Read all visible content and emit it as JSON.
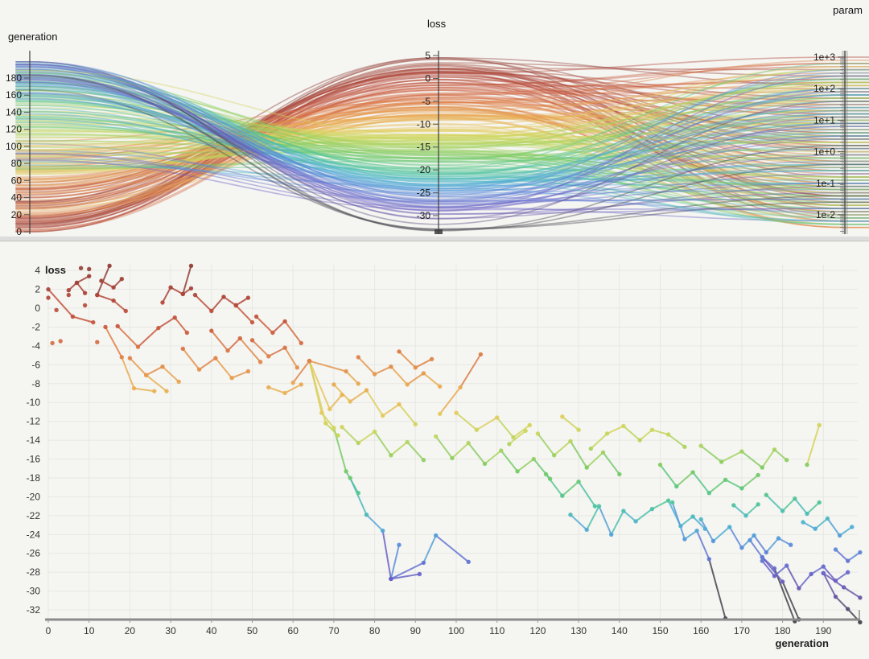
{
  "panels": {
    "parallel": {
      "axis_titles": {
        "generation": "generation",
        "loss": "loss",
        "param": "param"
      },
      "generation_ticks": [
        0,
        20,
        40,
        60,
        80,
        100,
        120,
        140,
        160,
        180
      ],
      "loss_ticks": [
        5,
        0,
        -5,
        -10,
        -15,
        -20,
        -25,
        -30
      ],
      "param_tick_labels": [
        "1e+3",
        "1e+2",
        "1e+1",
        "1e+0",
        "1e-1",
        "1e-2"
      ],
      "param_tick_exponents": [
        3,
        2,
        1,
        0,
        -1,
        -2
      ]
    },
    "scatter": {
      "x_label": "generation",
      "y_label": "loss",
      "x_ticks": [
        0,
        10,
        20,
        30,
        40,
        50,
        60,
        70,
        80,
        90,
        100,
        110,
        120,
        130,
        140,
        150,
        160,
        170,
        180,
        190
      ],
      "y_ticks": [
        4,
        2,
        0,
        -2,
        -4,
        -6,
        -8,
        -10,
        -12,
        -14,
        -16,
        -18,
        -20,
        -22,
        -24,
        -26,
        -28,
        -30,
        -32
      ]
    }
  },
  "colors": {
    "background": "#f5f5f2",
    "grid": "#e7e7e3",
    "axis_line": "#3c3c3c",
    "baseline": "#8b8b8b",
    "tick_text": "#1b1b1b",
    "brush_overlay": "rgba(120,120,120,0.28)",
    "colormap_stops": [
      [
        5,
        "#8d3e35"
      ],
      [
        1,
        "#b2473a"
      ],
      [
        -2,
        "#c95a3f"
      ],
      [
        -5,
        "#de7e48"
      ],
      [
        -8,
        "#e9a850"
      ],
      [
        -11,
        "#e6c95d"
      ],
      [
        -13,
        "#cdd75c"
      ],
      [
        -15,
        "#a6d360"
      ],
      [
        -17,
        "#7ecb63"
      ],
      [
        -19,
        "#5dc87f"
      ],
      [
        -21,
        "#4ec3a4"
      ],
      [
        -23,
        "#4fb2d3"
      ],
      [
        -25,
        "#5a92dc"
      ],
      [
        -27,
        "#6573d1"
      ],
      [
        -29,
        "#6c5ec3"
      ],
      [
        -31,
        "#6a579f"
      ],
      [
        -33,
        "#46464e"
      ],
      [
        -34,
        "#3a3a40"
      ]
    ]
  },
  "chart_data": {
    "type": "scatter",
    "linked_views": [
      "parallel-coordinates",
      "generation-loss-scatter"
    ],
    "color_by": "loss",
    "point_format": [
      "generation",
      "loss",
      "log10_param"
    ],
    "x_axis": {
      "label": "generation",
      "range": [
        0,
        199
      ],
      "grid": true
    },
    "y_axis": {
      "label": "loss",
      "range": [
        -33.5,
        5
      ],
      "grid": true
    },
    "param_axis": {
      "label": "param",
      "scale": "log",
      "range_exponents": [
        -2.6,
        3.2
      ]
    },
    "runs": [
      [
        [
          0,
          1.1,
          3.0
        ]
      ],
      [
        [
          2,
          -0.2,
          -1.4
        ]
      ],
      [
        [
          1,
          -3.7,
          -1.3
        ]
      ],
      [
        [
          3,
          -3.5,
          1.9
        ]
      ],
      [
        [
          9,
          0.3,
          0.0
        ]
      ],
      [
        [
          8,
          4.25,
          0.7
        ]
      ],
      [
        [
          10,
          4.15,
          -0.3
        ]
      ],
      [
        [
          5,
          1.4,
          0.5
        ]
      ],
      [
        [
          12,
          -3.6,
          2.3
        ]
      ],
      [
        [
          0,
          2.0,
          1.7
        ],
        [
          6,
          -0.9,
          -0.9
        ],
        [
          11,
          -1.5,
          2.8
        ]
      ],
      [
        [
          5,
          1.9,
          0.2
        ],
        [
          7,
          2.7,
          -1.8
        ],
        [
          9,
          1.6,
          1.2
        ]
      ],
      [
        [
          7,
          2.7,
          -2.3
        ],
        [
          10,
          3.4,
          2.4
        ]
      ],
      [
        [
          12,
          1.4,
          -2.0
        ],
        [
          15,
          4.5,
          2.1
        ]
      ],
      [
        [
          12,
          1.4,
          0.9
        ],
        [
          16,
          0.8,
          -0.6
        ],
        [
          19,
          -0.3,
          1.4
        ]
      ],
      [
        [
          13,
          2.9,
          -1.5
        ],
        [
          16,
          2.2,
          2.6
        ],
        [
          18,
          3.1,
          0.4
        ]
      ],
      [
        [
          14,
          -2.0,
          -1.0
        ],
        [
          18,
          -5.2,
          0.8
        ],
        [
          21,
          -8.5,
          -2.4
        ],
        [
          26,
          -8.8,
          1.0
        ]
      ],
      [
        [
          17,
          -1.9,
          2.2
        ],
        [
          22,
          -4.1,
          -0.2
        ],
        [
          27,
          -2.1,
          1.5
        ],
        [
          31,
          -1.0,
          -1.7
        ],
        [
          34,
          -2.6,
          0.6
        ]
      ],
      [
        [
          20,
          -5.3,
          2.9
        ],
        [
          24,
          -7.1,
          -1.1
        ],
        [
          28,
          -6.2,
          1.8
        ],
        [
          32,
          -7.8,
          -0.5
        ]
      ],
      [
        [
          24,
          -7.1,
          2.0
        ],
        [
          29,
          -8.8,
          -1.9
        ]
      ],
      [
        [
          28,
          0.6,
          0.3
        ],
        [
          30,
          2.2,
          -2.1
        ],
        [
          33,
          1.5,
          1.1
        ],
        [
          35,
          2.1,
          -0.8
        ]
      ],
      [
        [
          33,
          1.5,
          2.5
        ],
        [
          35,
          4.5,
          -1.4
        ]
      ],
      [
        [
          36,
          1.4,
          0.1
        ],
        [
          40,
          -0.3,
          -2.2
        ],
        [
          43,
          1.2,
          1.6
        ],
        [
          46,
          0.3,
          -0.4
        ],
        [
          50,
          -1.5,
          2.7
        ]
      ],
      [
        [
          46,
          0.3,
          0.5
        ],
        [
          49,
          1.1,
          -1.6
        ]
      ],
      [
        [
          40,
          -2.4,
          1.3
        ],
        [
          44,
          -4.5,
          -0.7
        ],
        [
          47,
          -3.2,
          2.3
        ],
        [
          52,
          -5.7,
          -1.2
        ]
      ],
      [
        [
          33,
          -4.3,
          0.9
        ],
        [
          37,
          -6.5,
          -2.4
        ],
        [
          41,
          -5.3,
          1.7
        ],
        [
          45,
          -7.4,
          0.2
        ],
        [
          49,
          -6.7,
          -1.0
        ]
      ],
      [
        [
          50,
          -3.4,
          2.8
        ],
        [
          54,
          -5.1,
          -0.1
        ],
        [
          58,
          -4.2,
          1.2
        ],
        [
          61,
          -6.3,
          -1.9
        ]
      ],
      [
        [
          51,
          -0.9,
          0.6
        ],
        [
          55,
          -2.6,
          -1.4
        ],
        [
          58,
          -1.4,
          2.0
        ],
        [
          62,
          -3.7,
          0.3
        ]
      ],
      [
        [
          54,
          -8.4,
          -2.2
        ],
        [
          58,
          -9.0,
          1.5
        ],
        [
          62,
          -8.1,
          -0.6
        ]
      ],
      [
        [
          60,
          -7.9,
          2.4
        ],
        [
          64,
          -5.6,
          -1.1
        ]
      ],
      [
        [
          64,
          -5.6,
          0.0
        ],
        [
          67,
          -11.1,
          -1.5
        ],
        [
          70,
          -12.7,
          2.6
        ],
        [
          73,
          -17.3,
          0.5
        ],
        [
          76,
          -19.6,
          -1.4
        ]
      ],
      [
        [
          64,
          -5.6,
          1.1
        ],
        [
          68,
          -12.2,
          -0.9
        ],
        [
          71,
          -13.5,
          1.3
        ]
      ],
      [
        [
          64,
          -5.6,
          -2.0
        ],
        [
          69,
          -10.7,
          0.9
        ],
        [
          72,
          -9.2,
          2.0
        ]
      ],
      [
        [
          64,
          -5.6,
          1.8
        ],
        [
          73,
          -6.7,
          -0.4
        ],
        [
          76,
          -8.0,
          1.0
        ]
      ],
      [
        [
          76,
          -5.2,
          -0.3
        ],
        [
          80,
          -7.0,
          2.2
        ],
        [
          84,
          -6.2,
          -1.7
        ],
        [
          88,
          -8.1,
          0.7
        ],
        [
          92,
          -6.9,
          -1.2
        ],
        [
          96,
          -8.3,
          1.6
        ]
      ],
      [
        [
          70,
          -8.1,
          0.4
        ],
        [
          74,
          -9.9,
          -2.3
        ],
        [
          78,
          -8.7,
          1.3
        ],
        [
          82,
          -11.4,
          -0.5
        ],
        [
          86,
          -10.2,
          2.1
        ],
        [
          90,
          -12.3,
          -1.6
        ]
      ],
      [
        [
          72,
          -12.6,
          0.9
        ],
        [
          76,
          -14.3,
          -0.8
        ],
        [
          80,
          -13.1,
          1.8
        ],
        [
          84,
          -15.6,
          -2.1
        ],
        [
          88,
          -14.2,
          0.5
        ],
        [
          92,
          -16.1,
          -1.3
        ]
      ],
      [
        [
          74,
          -18.0,
          2.3
        ],
        [
          78,
          -21.9,
          -0.4
        ],
        [
          82,
          -23.6,
          1.0
        ],
        [
          84,
          -28.7,
          -1.8
        ]
      ],
      [
        [
          84,
          -28.7,
          0.6
        ],
        [
          86,
          -25.1,
          -1.0
        ]
      ],
      [
        [
          84,
          -28.7,
          1.4
        ],
        [
          91,
          -28.2,
          -2.2
        ]
      ],
      [
        [
          84,
          -28.7,
          -0.7
        ],
        [
          92,
          -27.0,
          1.2
        ],
        [
          95,
          -24.1,
          2.0
        ],
        [
          103,
          -26.9,
          -1.5
        ]
      ],
      [
        [
          86,
          -4.6,
          0.1
        ],
        [
          90,
          -6.3,
          -1.9
        ],
        [
          94,
          -5.4,
          2.5
        ]
      ],
      [
        [
          96,
          -11.2,
          -0.2
        ],
        [
          101,
          -8.4,
          1.1
        ],
        [
          106,
          -4.9,
          -2.4
        ]
      ],
      [
        [
          95,
          -13.6,
          0.8
        ],
        [
          99,
          -15.9,
          -1.1
        ],
        [
          103,
          -14.3,
          1.7
        ],
        [
          107,
          -16.5,
          -0.6
        ],
        [
          111,
          -15.1,
          2.2
        ],
        [
          115,
          -17.3,
          -1.4
        ],
        [
          119,
          -16.0,
          0.3
        ],
        [
          123,
          -18.1,
          -2.0
        ]
      ],
      [
        [
          100,
          -11.1,
          1.5
        ],
        [
          105,
          -12.9,
          -0.9
        ],
        [
          110,
          -11.6,
          2.7
        ],
        [
          114,
          -13.7,
          0.0
        ],
        [
          118,
          -12.4,
          -1.7
        ]
      ],
      [
        [
          113,
          -14.4,
          0.9
        ],
        [
          117,
          -13.0,
          -0.3
        ]
      ],
      [
        [
          120,
          -13.3,
          2.1
        ],
        [
          124,
          -15.6,
          -1.2
        ],
        [
          128,
          -14.1,
          0.6
        ],
        [
          132,
          -16.9,
          -2.3
        ],
        [
          136,
          -15.3,
          1.3
        ],
        [
          140,
          -17.6,
          -0.1
        ]
      ],
      [
        [
          122,
          -17.6,
          1.9
        ],
        [
          126,
          -19.9,
          -1.6
        ],
        [
          130,
          -18.4,
          0.4
        ],
        [
          134,
          -21.0,
          2.4
        ]
      ],
      [
        [
          126,
          -11.5,
          -0.8
        ],
        [
          130,
          -12.9,
          1.6
        ]
      ],
      [
        [
          133,
          -14.9,
          -1.9
        ],
        [
          137,
          -13.3,
          0.7
        ],
        [
          141,
          -12.5,
          2.0
        ],
        [
          145,
          -14.0,
          -0.5
        ],
        [
          148,
          -12.9,
          1.1
        ],
        [
          152,
          -13.4,
          -1.3
        ],
        [
          156,
          -14.7,
          2.6
        ]
      ],
      [
        [
          128,
          -21.9,
          0.2
        ],
        [
          132,
          -23.5,
          -1.0
        ],
        [
          135,
          -21.0,
          1.8
        ],
        [
          138,
          -24.0,
          -2.2
        ],
        [
          141,
          -21.5,
          0.9
        ],
        [
          144,
          -22.6,
          -0.4
        ],
        [
          148,
          -21.3,
          2.3
        ],
        [
          152,
          -20.4,
          -1.5
        ],
        [
          155,
          -23.1,
          0.5
        ],
        [
          158,
          -22.1,
          -0.9
        ],
        [
          161,
          -23.4,
          1.4
        ]
      ],
      [
        [
          150,
          -16.6,
          -0.2
        ],
        [
          154,
          -18.9,
          1.2
        ],
        [
          158,
          -17.4,
          -1.8
        ],
        [
          162,
          -19.6,
          2.8
        ],
        [
          166,
          -18.2,
          0.1
        ],
        [
          170,
          -19.1,
          -1.1
        ],
        [
          174,
          -17.7,
          1.7
        ]
      ],
      [
        [
          153,
          -20.6,
          -2.1
        ],
        [
          156,
          -24.5,
          0.8
        ],
        [
          159,
          -23.6,
          -0.6
        ],
        [
          162,
          -26.6,
          1.5
        ],
        [
          166,
          -32.9,
          -1.4
        ]
      ],
      [
        [
          160,
          -14.6,
          0.3
        ],
        [
          165,
          -16.3,
          -1.7
        ],
        [
          170,
          -15.2,
          2.2
        ],
        [
          175,
          -16.9,
          -0.8
        ],
        [
          178,
          -15.0,
          1.0
        ],
        [
          181,
          -16.1,
          -2.3
        ]
      ],
      [
        [
          160,
          -22.4,
          1.6
        ],
        [
          163,
          -24.7,
          -0.3
        ],
        [
          167,
          -23.2,
          0.9
        ],
        [
          170,
          -25.4,
          -1.2
        ],
        [
          173,
          -24.1,
          2.5
        ],
        [
          176,
          -25.9,
          -1.9
        ],
        [
          179,
          -24.4,
          0.6
        ],
        [
          182,
          -25.1,
          1.3
        ]
      ],
      [
        [
          168,
          -20.9,
          -2.3
        ],
        [
          171,
          -22.0,
          1.4
        ],
        [
          174,
          -20.8,
          -0.2
        ]
      ],
      [
        [
          176,
          -19.8,
          2.0
        ],
        [
          180,
          -21.5,
          -1.0
        ],
        [
          183,
          -20.2,
          0.6
        ],
        [
          186,
          -21.8,
          -1.8
        ],
        [
          189,
          -20.6,
          1.1
        ]
      ],
      [
        [
          172,
          -24.6,
          -0.5
        ],
        [
          175,
          -26.4,
          1.8
        ],
        [
          178,
          -27.6,
          -1.0
        ],
        [
          183,
          -33.2,
          0.2
        ]
      ],
      [
        [
          175,
          -26.4,
          -2.4
        ],
        [
          180,
          -29.0,
          1.1
        ],
        [
          184,
          -33.0,
          -1.6
        ]
      ],
      [
        [
          175,
          -26.8,
          2.0
        ],
        [
          178,
          -28.4,
          -0.1
        ],
        [
          181,
          -27.3,
          0.8
        ],
        [
          184,
          -29.7,
          -1.3
        ],
        [
          187,
          -28.2,
          1.9
        ],
        [
          190,
          -27.4,
          -0.7
        ],
        [
          193,
          -28.9,
          2.4
        ],
        [
          196,
          -28.0,
          0.4
        ]
      ],
      [
        [
          190,
          -28.1,
          0.5
        ],
        [
          193,
          -30.6,
          -1.1
        ],
        [
          196,
          -31.9,
          1.6
        ],
        [
          199,
          -33.3,
          -0.4
        ]
      ],
      [
        [
          190,
          -28.1,
          2.1
        ],
        [
          195,
          -29.6,
          -1.8
        ],
        [
          199,
          -30.7,
          0.9
        ]
      ],
      [
        [
          185,
          -22.7,
          -0.6
        ],
        [
          188,
          -23.4,
          1.2
        ],
        [
          191,
          -22.3,
          -2.2
        ],
        [
          194,
          -24.1,
          0.7
        ],
        [
          197,
          -23.2,
          1.8
        ]
      ],
      [
        [
          186,
          -16.6,
          -1.2
        ],
        [
          189,
          -12.4,
          0.3
        ]
      ],
      [
        [
          193,
          -25.6,
          2.6
        ],
        [
          196,
          -26.8,
          -1.5
        ],
        [
          199,
          -25.9,
          0.1
        ]
      ]
    ]
  }
}
